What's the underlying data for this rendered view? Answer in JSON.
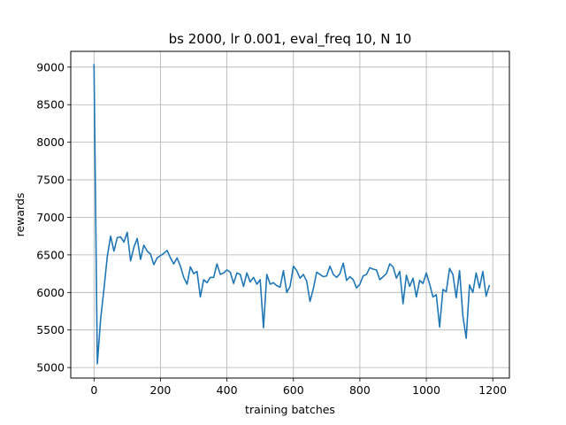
{
  "chart_data": {
    "type": "line",
    "title": "bs 2000, lr 0.001, eval_freq 10, N 10",
    "xlabel": "training batches",
    "ylabel": "rewards",
    "xlim": [
      -70,
      1250
    ],
    "ylim": [
      4860,
      9210
    ],
    "xticks": [
      0,
      200,
      400,
      600,
      800,
      1000,
      1200
    ],
    "yticks": [
      5000,
      5500,
      6000,
      6500,
      7000,
      7500,
      8000,
      8500,
      9000
    ],
    "grid": true,
    "series": [
      {
        "color": "#1f77b4",
        "x": [
          0,
          10,
          20,
          30,
          40,
          50,
          60,
          70,
          80,
          90,
          100,
          110,
          120,
          130,
          140,
          150,
          160,
          170,
          180,
          190,
          200,
          210,
          220,
          230,
          240,
          250,
          260,
          270,
          280,
          290,
          300,
          310,
          320,
          330,
          340,
          350,
          360,
          370,
          380,
          390,
          400,
          410,
          420,
          430,
          440,
          450,
          460,
          470,
          480,
          490,
          500,
          510,
          520,
          530,
          540,
          550,
          560,
          570,
          580,
          590,
          600,
          610,
          620,
          630,
          640,
          650,
          660,
          670,
          680,
          690,
          700,
          710,
          720,
          730,
          740,
          750,
          760,
          770,
          780,
          790,
          800,
          810,
          820,
          830,
          840,
          850,
          860,
          870,
          880,
          890,
          900,
          910,
          920,
          930,
          940,
          950,
          960,
          970,
          980,
          990,
          1000,
          1010,
          1020,
          1030,
          1040,
          1050,
          1060,
          1070,
          1080,
          1090,
          1100,
          1110,
          1120,
          1130,
          1140,
          1150,
          1160,
          1170,
          1180,
          1190
        ],
        "y": [
          9040,
          5050,
          5650,
          6050,
          6480,
          6750,
          6550,
          6730,
          6740,
          6670,
          6800,
          6420,
          6600,
          6720,
          6440,
          6630,
          6550,
          6510,
          6370,
          6460,
          6490,
          6520,
          6560,
          6460,
          6380,
          6460,
          6350,
          6200,
          6110,
          6340,
          6250,
          6280,
          5940,
          6170,
          6130,
          6200,
          6200,
          6380,
          6240,
          6260,
          6300,
          6270,
          6120,
          6260,
          6240,
          6080,
          6260,
          6140,
          6200,
          6110,
          6170,
          5530,
          6240,
          6110,
          6130,
          6090,
          6070,
          6290,
          6000,
          6080,
          6350,
          6290,
          6190,
          6240,
          6150,
          5880,
          6050,
          6270,
          6240,
          6210,
          6220,
          6350,
          6240,
          6200,
          6250,
          6390,
          6160,
          6210,
          6170,
          6060,
          6110,
          6220,
          6240,
          6330,
          6310,
          6300,
          6170,
          6210,
          6250,
          6380,
          6340,
          6190,
          6280,
          5850,
          6230,
          6080,
          6190,
          5940,
          6160,
          6120,
          6260,
          6110,
          5940,
          5970,
          5540,
          6040,
          6010,
          6320,
          6240,
          5930,
          6290,
          5690,
          5390,
          6100,
          6000,
          6260,
          6060,
          6280,
          5950,
          6100
        ]
      }
    ]
  }
}
